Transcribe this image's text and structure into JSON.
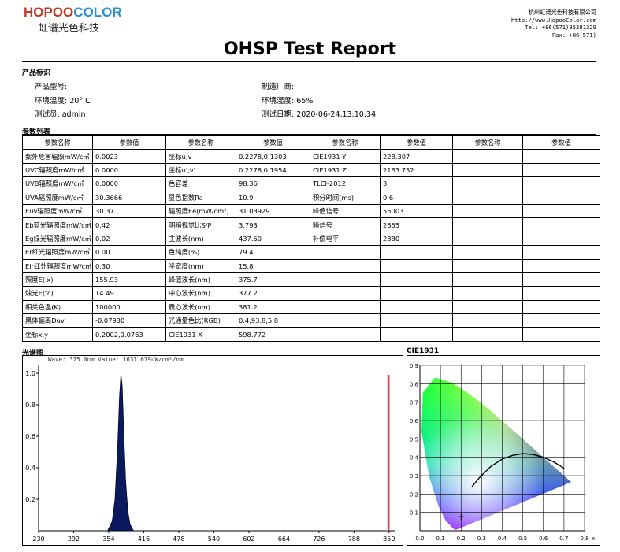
{
  "header": {
    "logo_hopoo": "HOPOO",
    "logo_color": "COLOR",
    "logo_cn": "虹谱光色科技",
    "contact": [
      "杭州虹谱光色科技有限公司",
      "http://www.HopooColor.com",
      "Tel: +86(571)85281329",
      "Fax: +86(571)"
    ],
    "title": "OHSP Test Report"
  },
  "product": {
    "section": "产品标识",
    "model_label": "产品型号:",
    "maker_label": "制造厂商:",
    "temp_label": "环境温度:",
    "temp_value": "20° C",
    "humidity_label": "环境湿度:",
    "humidity_value": "65%",
    "tester_label": "测试员:",
    "tester_value": "admin",
    "date_label": "测试日期:",
    "date_value": "2020-06-24,13:10:34"
  },
  "params": {
    "section": "参数列表",
    "headers": [
      "参数名称",
      "参数值",
      "参数名称",
      "参数值",
      "参数名称",
      "参数值",
      "参数名称",
      "参数值"
    ],
    "rows": [
      [
        "紫外危害辐照mW/c㎡",
        "0.0023",
        "坐标u,v",
        "0.2278,0.1303",
        "CIE1931 Y",
        "228.307",
        "",
        ""
      ],
      [
        "UVC辐照度mW/c㎡",
        "0.0000",
        "坐标u',v'",
        "0.2278,0.1954",
        "CIE1931 Z",
        "2163.752",
        "",
        ""
      ],
      [
        "UVB辐照度mW/c㎡",
        "0.0000",
        "色容差",
        "98.36",
        "TLCI-2012",
        "3",
        "",
        ""
      ],
      [
        "UVA辐照度mW/c㎡",
        "30.3666",
        "显色指数Ra",
        "10.9",
        "积分时间(ms)",
        "0.6",
        "",
        ""
      ],
      [
        "Euv辐照度mW/c㎡",
        "30.37",
        "辐照度Ee(mW/cm²)",
        "31.03929",
        "峰值信号",
        "55003",
        "",
        ""
      ],
      [
        "Eb蓝光辐照度mW/c㎡",
        "0.42",
        "明暗视觉比S/P",
        "3.793",
        "暗信号",
        "2655",
        "",
        ""
      ],
      [
        "Eg绿光辐照度mW/c㎡",
        "0.02",
        "主波长(nm)",
        "437.60",
        "补偿电平",
        "2880",
        "",
        ""
      ],
      [
        "Er红光辐照度mW/c㎡",
        "0.00",
        "色纯度(%)",
        "79.4",
        "",
        "",
        "",
        ""
      ],
      [
        "Eir红外辐照度mW/c㎡",
        "0.30",
        "半宽度(nm)",
        "15.8",
        "",
        "",
        "",
        ""
      ],
      [
        "照度E(lx)",
        "155.93",
        "峰值波长(nm)",
        "375.7",
        "",
        "",
        "",
        ""
      ],
      [
        "烛光E(fc)",
        "14.49",
        "中心波长(nm)",
        "377.2",
        "",
        "",
        "",
        ""
      ],
      [
        "相关色温(K)",
        "100000",
        "质心波长(nm)",
        "381.2",
        "",
        "",
        "",
        ""
      ],
      [
        "黑体偏离Duv",
        "-0.07930",
        "光通量色比(RGB)",
        "0.4,93.8,5.8",
        "",
        "",
        "",
        ""
      ],
      [
        "坐标x,y",
        "0.2002,0.0763",
        "CIE1931 X",
        "598.772",
        "",
        "",
        "",
        ""
      ]
    ]
  },
  "spectrum": {
    "section": "光谱图",
    "readout": "Wave: 375.0nm Value: 1631.679uW/cm²/nm",
    "chart_data": {
      "type": "area",
      "x_ticks": [
        "230",
        "292",
        "354",
        "416",
        "478",
        "540",
        "602",
        "664",
        "726",
        "788",
        "850"
      ],
      "y_ticks": [
        "1.0",
        "0.8",
        "0.6",
        "0.4",
        "0.2"
      ],
      "xlim": [
        230,
        860
      ],
      "ylim": [
        0,
        1.05
      ],
      "peak_nm": 375.7,
      "fwhm_nm": 15.8,
      "points": [
        [
          352,
          0.0
        ],
        [
          360,
          0.06
        ],
        [
          365,
          0.2
        ],
        [
          370,
          0.55
        ],
        [
          373,
          0.85
        ],
        [
          375.7,
          1.0
        ],
        [
          378,
          0.92
        ],
        [
          381,
          0.6
        ],
        [
          384,
          0.32
        ],
        [
          388,
          0.12
        ],
        [
          392,
          0.04
        ],
        [
          398,
          0.0
        ]
      ],
      "fill_color": "#0b1a5e",
      "cursor_nm": 850,
      "cursor_color": "#cc2222"
    }
  },
  "cie": {
    "section": "CIE1931",
    "chart_data": {
      "type": "scatter",
      "x_ticks": [
        "0.0",
        "0.1",
        "0.2",
        "0.3",
        "0.4",
        "0.5",
        "0.6",
        "0.7",
        "0.8"
      ],
      "x_unit": "x",
      "y_ticks": [
        "0.9",
        "0.8",
        "0.7",
        "0.6",
        "0.5",
        "0.4",
        "0.3",
        "0.2",
        "0.1"
      ],
      "xlim": [
        0,
        0.8
      ],
      "ylim": [
        0,
        0.9
      ],
      "point": [
        0.2002,
        0.0763
      ]
    }
  }
}
